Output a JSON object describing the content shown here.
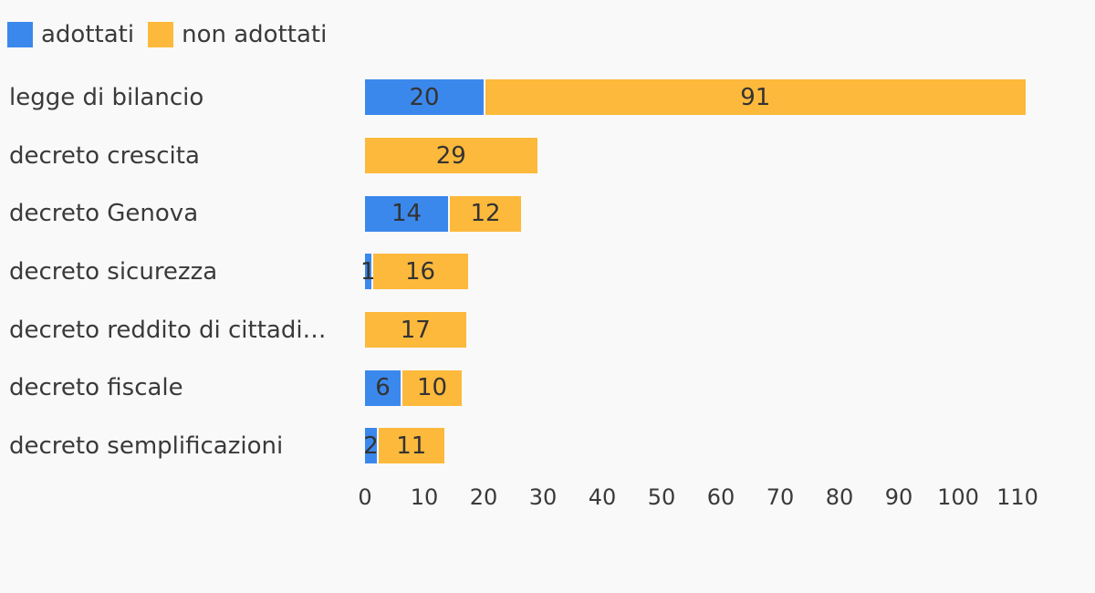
{
  "legend": [
    {
      "label": "adottati",
      "color": "#3b88ed"
    },
    {
      "label": "non adottati",
      "color": "#fdb93c"
    }
  ],
  "colors": {
    "adottati": "#3b88ed",
    "non_adottati": "#fdb93c",
    "background": "#f9f9f9",
    "text": "#3a3a3a",
    "value_label": "#333333"
  },
  "chart_data": {
    "type": "bar",
    "orientation": "horizontal",
    "stacked": true,
    "title": "",
    "xlabel": "",
    "ylabel": "",
    "xlim": [
      0,
      113
    ],
    "grid": false,
    "legend_position": "top-left",
    "categories": [
      "legge di bilancio",
      "decreto crescita",
      "decreto Genova",
      "decreto sicurezza",
      "decreto reddito di cittadi…",
      "decreto fiscale",
      "decreto semplificazioni"
    ],
    "series": [
      {
        "name": "adottati",
        "color": "#3b88ed",
        "values": [
          20,
          0,
          14,
          1,
          0,
          6,
          2
        ]
      },
      {
        "name": "non adottati",
        "color": "#fdb93c",
        "values": [
          91,
          29,
          12,
          16,
          17,
          10,
          11
        ]
      }
    ],
    "totals": [
      111,
      29,
      26,
      17,
      17,
      16,
      13
    ],
    "x_ticks": [
      0,
      10,
      20,
      30,
      40,
      50,
      60,
      70,
      80,
      90,
      100,
      110
    ],
    "value_labels_shown": true
  }
}
